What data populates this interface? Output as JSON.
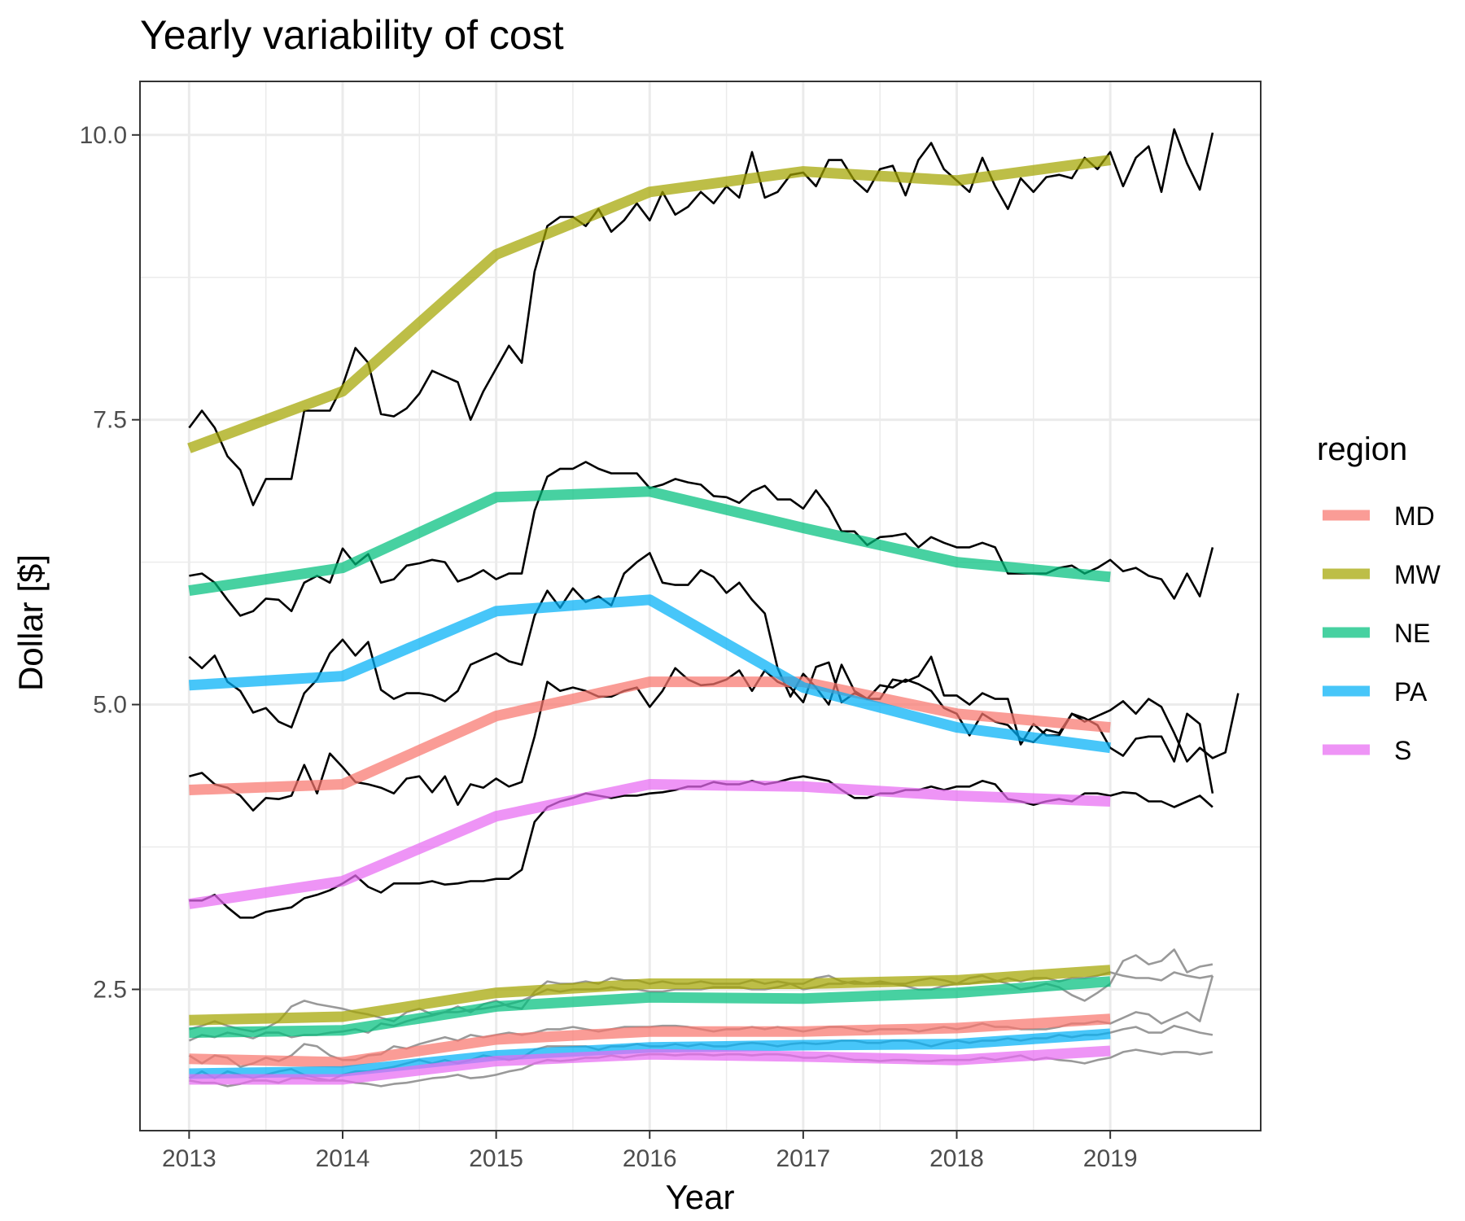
{
  "chart_data": {
    "type": "line",
    "title": "Yearly variability of cost",
    "xlabel": "Year",
    "ylabel": "Dollar [$]",
    "xlim": [
      2012.68,
      2019.98
    ],
    "ylim": [
      1.26,
      10.47
    ],
    "x_ticks": [
      2013,
      2014,
      2015,
      2016,
      2017,
      2018,
      2019
    ],
    "x_tick_labels": [
      "2013",
      "2014",
      "2015",
      "2016",
      "2017",
      "2018",
      "2019"
    ],
    "y_ticks": [
      2.5,
      5.0,
      7.5,
      10.0
    ],
    "y_tick_labels": [
      "2.5",
      "5.0",
      "7.5",
      "10.0"
    ],
    "grid": true,
    "legend": {
      "title": "region",
      "position": "right"
    },
    "colors": {
      "MD": "#F8766D",
      "MW": "#A3A500",
      "NE": "#00BF7D",
      "PA": "#00B0F6",
      "S": "#E76BF3"
    },
    "series": [
      {
        "name": "MD",
        "x": [
          2013,
          2014,
          2015,
          2016,
          2017,
          2018,
          2019
        ],
        "values": [
          4.25,
          4.3,
          4.9,
          5.2,
          5.2,
          4.92,
          4.8
        ]
      },
      {
        "name": "MW",
        "x": [
          2013,
          2014,
          2015,
          2016,
          2017,
          2018,
          2019
        ],
        "values": [
          7.25,
          7.75,
          8.95,
          9.5,
          9.68,
          9.6,
          9.78
        ]
      },
      {
        "name": "NE",
        "x": [
          2013,
          2014,
          2015,
          2016,
          2017,
          2018,
          2019
        ],
        "values": [
          6.0,
          6.2,
          6.82,
          6.87,
          6.55,
          6.25,
          6.12
        ]
      },
      {
        "name": "PA",
        "x": [
          2013,
          2014,
          2015,
          2016,
          2017,
          2018,
          2019
        ],
        "values": [
          5.17,
          5.25,
          5.82,
          5.92,
          5.15,
          4.8,
          4.62
        ]
      },
      {
        "name": "S",
        "x": [
          2013,
          2014,
          2015,
          2016,
          2017,
          2018,
          2019
        ],
        "values": [
          3.25,
          3.45,
          4.02,
          4.3,
          4.28,
          4.2,
          4.15
        ]
      },
      {
        "name": "MW",
        "x": [
          2013,
          2014,
          2015,
          2016,
          2017,
          2018,
          2019
        ],
        "values": [
          2.23,
          2.26,
          2.47,
          2.55,
          2.55,
          2.58,
          2.67
        ]
      },
      {
        "name": "NE",
        "x": [
          2013,
          2014,
          2015,
          2016,
          2017,
          2018,
          2019
        ],
        "values": [
          2.12,
          2.14,
          2.35,
          2.43,
          2.42,
          2.47,
          2.57
        ]
      },
      {
        "name": "MD",
        "x": [
          2013,
          2014,
          2015,
          2016,
          2017,
          2018,
          2019
        ],
        "values": [
          1.89,
          1.86,
          2.06,
          2.13,
          2.13,
          2.16,
          2.24
        ]
      },
      {
        "name": "PA",
        "x": [
          2013,
          2014,
          2015,
          2016,
          2017,
          2018,
          2019
        ],
        "values": [
          1.76,
          1.78,
          1.92,
          1.99,
          2.01,
          2.02,
          2.11
        ]
      },
      {
        "name": "S",
        "x": [
          2013,
          2014,
          2015,
          2016,
          2017,
          2018,
          2019
        ],
        "values": [
          1.71,
          1.71,
          1.87,
          1.93,
          1.91,
          1.88,
          1.96
        ]
      }
    ],
    "monthly_lines": [
      {
        "color": "#000000",
        "start": 2013,
        "values": [
          7.43,
          7.58,
          7.43,
          7.18,
          7.06,
          6.75,
          6.98,
          6.98,
          6.98,
          7.58,
          7.58,
          7.58,
          7.8,
          8.13,
          8.0,
          7.55,
          7.53,
          7.6,
          7.73,
          7.93,
          7.88,
          7.83,
          7.5,
          7.75,
          7.95,
          8.15,
          8.0,
          8.8,
          9.2,
          9.28,
          9.28,
          9.2,
          9.35,
          9.15,
          9.25,
          9.4,
          9.25,
          9.5,
          9.3,
          9.37,
          9.5,
          9.4,
          9.55,
          9.45,
          9.85,
          9.45,
          9.5,
          9.65,
          9.67,
          9.55,
          9.78,
          9.78,
          9.6,
          9.5,
          9.7,
          9.73,
          9.47,
          9.78,
          9.93,
          9.7,
          9.6,
          9.5,
          9.8,
          9.55,
          9.35,
          9.62,
          9.5,
          9.63,
          9.65,
          9.62,
          9.8,
          9.7,
          9.85,
          9.55,
          9.8,
          9.9,
          9.5,
          10.05,
          9.75,
          9.52,
          10.02
        ]
      },
      {
        "color": "#000000",
        "start": 2013,
        "values": [
          6.13,
          6.15,
          6.07,
          5.92,
          5.78,
          5.82,
          5.93,
          5.92,
          5.82,
          6.07,
          6.13,
          6.07,
          6.37,
          6.23,
          6.32,
          6.07,
          6.1,
          6.22,
          6.24,
          6.27,
          6.25,
          6.08,
          6.12,
          6.18,
          6.1,
          6.15,
          6.15,
          6.7,
          7.0,
          7.07,
          7.07,
          7.13,
          7.07,
          7.03,
          7.03,
          7.03,
          6.9,
          6.93,
          6.98,
          6.95,
          6.93,
          6.83,
          6.82,
          6.77,
          6.87,
          6.92,
          6.8,
          6.8,
          6.72,
          6.88,
          6.73,
          6.52,
          6.52,
          6.4,
          6.47,
          6.48,
          6.5,
          6.38,
          6.47,
          6.42,
          6.38,
          6.38,
          6.42,
          6.38,
          6.15,
          6.15,
          6.15,
          6.15,
          6.2,
          6.22,
          6.15,
          6.2,
          6.27,
          6.17,
          6.2,
          6.13,
          6.1,
          5.93,
          6.15,
          5.95,
          6.38
        ]
      },
      {
        "color": "#000000",
        "start": 2013,
        "values": [
          5.42,
          5.32,
          5.43,
          5.2,
          5.12,
          4.93,
          4.97,
          4.85,
          4.8,
          5.1,
          5.22,
          5.45,
          5.57,
          5.43,
          5.55,
          5.13,
          5.05,
          5.1,
          5.1,
          5.08,
          5.03,
          5.12,
          5.35,
          5.4,
          5.45,
          5.38,
          5.35,
          5.78,
          6.0,
          5.85,
          6.02,
          5.9,
          5.95,
          5.87,
          6.15,
          6.25,
          6.33,
          6.07,
          6.05,
          6.05,
          6.18,
          6.12,
          5.98,
          6.07,
          5.92,
          5.8,
          5.32,
          5.07,
          5.27,
          5.15,
          5.0,
          5.35,
          5.12,
          5.05,
          5.05,
          5.22,
          5.2,
          5.25,
          5.42,
          5.08,
          5.08,
          5.0,
          5.1,
          5.05,
          5.05,
          4.65,
          4.83,
          4.73,
          4.73,
          4.92,
          4.88,
          4.82,
          4.62,
          4.55,
          4.7,
          4.72,
          4.72,
          4.5,
          4.92,
          4.83,
          4.22
        ]
      },
      {
        "color": "#000000",
        "start": 2013,
        "values": [
          4.37,
          4.4,
          4.3,
          4.27,
          4.2,
          4.07,
          4.18,
          4.17,
          4.2,
          4.47,
          4.22,
          4.57,
          4.45,
          4.32,
          4.3,
          4.27,
          4.22,
          4.35,
          4.37,
          4.23,
          4.37,
          4.12,
          4.3,
          4.27,
          4.35,
          4.28,
          4.32,
          4.72,
          5.2,
          5.12,
          5.15,
          5.12,
          5.07,
          5.07,
          5.12,
          5.15,
          4.98,
          5.12,
          5.32,
          5.22,
          5.17,
          5.18,
          5.22,
          5.3,
          5.12,
          5.3,
          5.2,
          5.15,
          5.02,
          5.33,
          5.37,
          5.02,
          5.1,
          5.05,
          5.17,
          5.15,
          5.22,
          5.18,
          5.12,
          4.97,
          4.92,
          4.73,
          4.92,
          4.85,
          4.82,
          4.7,
          4.67,
          4.78,
          4.75,
          4.92,
          4.85,
          4.9,
          4.95,
          5.03,
          4.92,
          5.05,
          4.98,
          4.75,
          4.5,
          4.62,
          4.53,
          4.58,
          5.1
        ]
      },
      {
        "color": "#000000",
        "start": 2013,
        "values": [
          3.28,
          3.28,
          3.33,
          3.22,
          3.13,
          3.13,
          3.18,
          3.2,
          3.22,
          3.3,
          3.33,
          3.37,
          3.43,
          3.5,
          3.4,
          3.35,
          3.43,
          3.43,
          3.43,
          3.45,
          3.42,
          3.43,
          3.45,
          3.45,
          3.47,
          3.47,
          3.55,
          3.97,
          4.1,
          4.15,
          4.18,
          4.22,
          4.2,
          4.18,
          4.2,
          4.2,
          4.22,
          4.23,
          4.25,
          4.28,
          4.28,
          4.32,
          4.3,
          4.3,
          4.33,
          4.3,
          4.32,
          4.35,
          4.37,
          4.35,
          4.33,
          4.25,
          4.18,
          4.18,
          4.22,
          4.22,
          4.25,
          4.25,
          4.28,
          4.25,
          4.28,
          4.28,
          4.33,
          4.3,
          4.17,
          4.15,
          4.12,
          4.15,
          4.17,
          4.15,
          4.22,
          4.22,
          4.2,
          4.23,
          4.22,
          4.15,
          4.15,
          4.1,
          4.15,
          4.2,
          4.1
        ]
      },
      {
        "color": "#999999",
        "start": 2013,
        "values": [
          2.15,
          2.18,
          2.22,
          2.18,
          2.15,
          2.13,
          2.16,
          2.22,
          2.35,
          2.4,
          2.37,
          2.35,
          2.33,
          2.3,
          2.28,
          2.25,
          2.22,
          2.3,
          2.33,
          2.28,
          2.3,
          2.35,
          2.3,
          2.37,
          2.4,
          2.35,
          2.33,
          2.48,
          2.57,
          2.55,
          2.55,
          2.57,
          2.55,
          2.6,
          2.58,
          2.58,
          2.55,
          2.57,
          2.55,
          2.55,
          2.57,
          2.55,
          2.55,
          2.55,
          2.58,
          2.55,
          2.57,
          2.55,
          2.55,
          2.6,
          2.62,
          2.57,
          2.55,
          2.55,
          2.57,
          2.55,
          2.53,
          2.5,
          2.5,
          2.53,
          2.55,
          2.6,
          2.62,
          2.58,
          2.55,
          2.5,
          2.52,
          2.55,
          2.52,
          2.45,
          2.4,
          2.47,
          2.55,
          2.75,
          2.8,
          2.72,
          2.75,
          2.85,
          2.65,
          2.7,
          2.72
        ]
      },
      {
        "color": "#999999",
        "start": 2013,
        "values": [
          2.05,
          2.1,
          2.08,
          2.12,
          2.1,
          2.07,
          2.12,
          2.12,
          2.08,
          2.1,
          2.1,
          2.12,
          2.13,
          2.15,
          2.12,
          2.2,
          2.18,
          2.22,
          2.25,
          2.27,
          2.3,
          2.3,
          2.32,
          2.33,
          2.35,
          2.37,
          2.4,
          2.45,
          2.5,
          2.48,
          2.5,
          2.5,
          2.5,
          2.52,
          2.5,
          2.5,
          2.48,
          2.48,
          2.5,
          2.5,
          2.5,
          2.52,
          2.52,
          2.52,
          2.5,
          2.5,
          2.52,
          2.55,
          2.5,
          2.52,
          2.55,
          2.55,
          2.57,
          2.55,
          2.55,
          2.55,
          2.55,
          2.58,
          2.6,
          2.58,
          2.55,
          2.55,
          2.57,
          2.57,
          2.6,
          2.57,
          2.6,
          2.6,
          2.57,
          2.6,
          2.6,
          2.62,
          2.65,
          2.62,
          2.6,
          2.6,
          2.58,
          2.65,
          2.62,
          2.6,
          2.62
        ]
      },
      {
        "color": "#999999",
        "start": 2013,
        "values": [
          1.92,
          1.85,
          1.92,
          1.9,
          1.82,
          1.85,
          1.9,
          1.87,
          1.92,
          2.02,
          2.0,
          1.92,
          1.88,
          1.88,
          1.92,
          1.93,
          2.0,
          1.98,
          2.02,
          2.05,
          2.08,
          2.05,
          2.1,
          2.08,
          2.1,
          2.12,
          2.1,
          2.12,
          2.15,
          2.15,
          2.17,
          2.15,
          2.13,
          2.15,
          2.17,
          2.17,
          2.17,
          2.18,
          2.18,
          2.17,
          2.15,
          2.13,
          2.15,
          2.15,
          2.17,
          2.15,
          2.17,
          2.15,
          2.13,
          2.15,
          2.17,
          2.17,
          2.15,
          2.13,
          2.15,
          2.15,
          2.15,
          2.13,
          2.15,
          2.17,
          2.15,
          2.17,
          2.2,
          2.17,
          2.17,
          2.15,
          2.15,
          2.15,
          2.17,
          2.2,
          2.2,
          2.22,
          2.2,
          2.25,
          2.3,
          2.28,
          2.2,
          2.25,
          2.3,
          2.22,
          2.62
        ]
      },
      {
        "color": "#999999",
        "start": 2013,
        "values": [
          1.72,
          1.78,
          1.72,
          1.78,
          1.75,
          1.72,
          1.75,
          1.78,
          1.8,
          1.75,
          1.72,
          1.7,
          1.75,
          1.78,
          1.78,
          1.8,
          1.82,
          1.85,
          1.88,
          1.85,
          1.88,
          1.85,
          1.88,
          1.92,
          1.9,
          1.88,
          1.9,
          1.97,
          2.0,
          2.0,
          2.0,
          2.0,
          1.97,
          2.0,
          2.0,
          2.02,
          2.0,
          2.0,
          2.02,
          2.0,
          2.02,
          2.0,
          2.0,
          2.02,
          2.03,
          2.02,
          2.0,
          2.02,
          2.03,
          2.02,
          2.03,
          2.05,
          2.05,
          2.03,
          2.03,
          2.05,
          2.05,
          2.03,
          2.0,
          2.03,
          2.05,
          2.03,
          2.05,
          2.05,
          2.07,
          2.05,
          2.07,
          2.07,
          2.1,
          2.08,
          2.1,
          2.1,
          2.12,
          2.15,
          2.17,
          2.12,
          2.12,
          2.18,
          2.15,
          2.12,
          2.1
        ]
      },
      {
        "color": "#999999",
        "start": 2013,
        "values": [
          1.7,
          1.68,
          1.68,
          1.65,
          1.67,
          1.7,
          1.7,
          1.68,
          1.72,
          1.72,
          1.7,
          1.7,
          1.7,
          1.68,
          1.67,
          1.65,
          1.67,
          1.68,
          1.7,
          1.72,
          1.73,
          1.75,
          1.72,
          1.73,
          1.75,
          1.78,
          1.8,
          1.85,
          1.88,
          1.87,
          1.88,
          1.9,
          1.9,
          1.92,
          1.9,
          1.92,
          1.93,
          1.93,
          1.92,
          1.93,
          1.93,
          1.92,
          1.93,
          1.93,
          1.92,
          1.93,
          1.93,
          1.92,
          1.9,
          1.9,
          1.92,
          1.9,
          1.88,
          1.88,
          1.87,
          1.88,
          1.88,
          1.87,
          1.87,
          1.88,
          1.88,
          1.88,
          1.9,
          1.88,
          1.9,
          1.92,
          1.88,
          1.9,
          1.88,
          1.87,
          1.85,
          1.88,
          1.9,
          1.95,
          1.97,
          1.95,
          1.93,
          1.95,
          1.95,
          1.93,
          1.95
        ]
      }
    ]
  }
}
